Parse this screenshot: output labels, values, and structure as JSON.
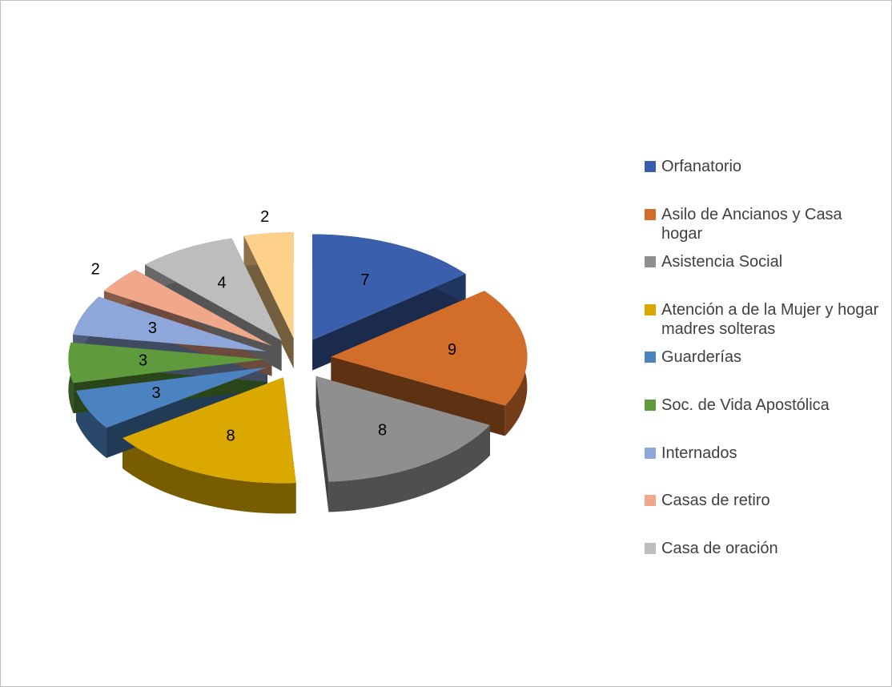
{
  "chart_data": {
    "type": "pie3d",
    "categories": [
      "Orfanatorio",
      "Asilo de Ancianos  y Casa hogar",
      "Asistencia Social",
      "Atención a de la Mujer  y hogar madres solteras",
      "Guarderías",
      "Soc. de Vida Apostólica",
      "Internados",
      "Casas de retiro",
      "Casa de oración",
      null
    ],
    "values": [
      7,
      9,
      8,
      8,
      3,
      3,
      3,
      2,
      4,
      2
    ],
    "colors": [
      "#3a60ad",
      "#d36d2a",
      "#8f8f8f",
      "#dba800",
      "#4a83c0",
      "#5f9a3c",
      "#8ea7da",
      "#f0a78a",
      "#bdbdbd",
      "#ffd08a"
    ],
    "legend": "right"
  }
}
